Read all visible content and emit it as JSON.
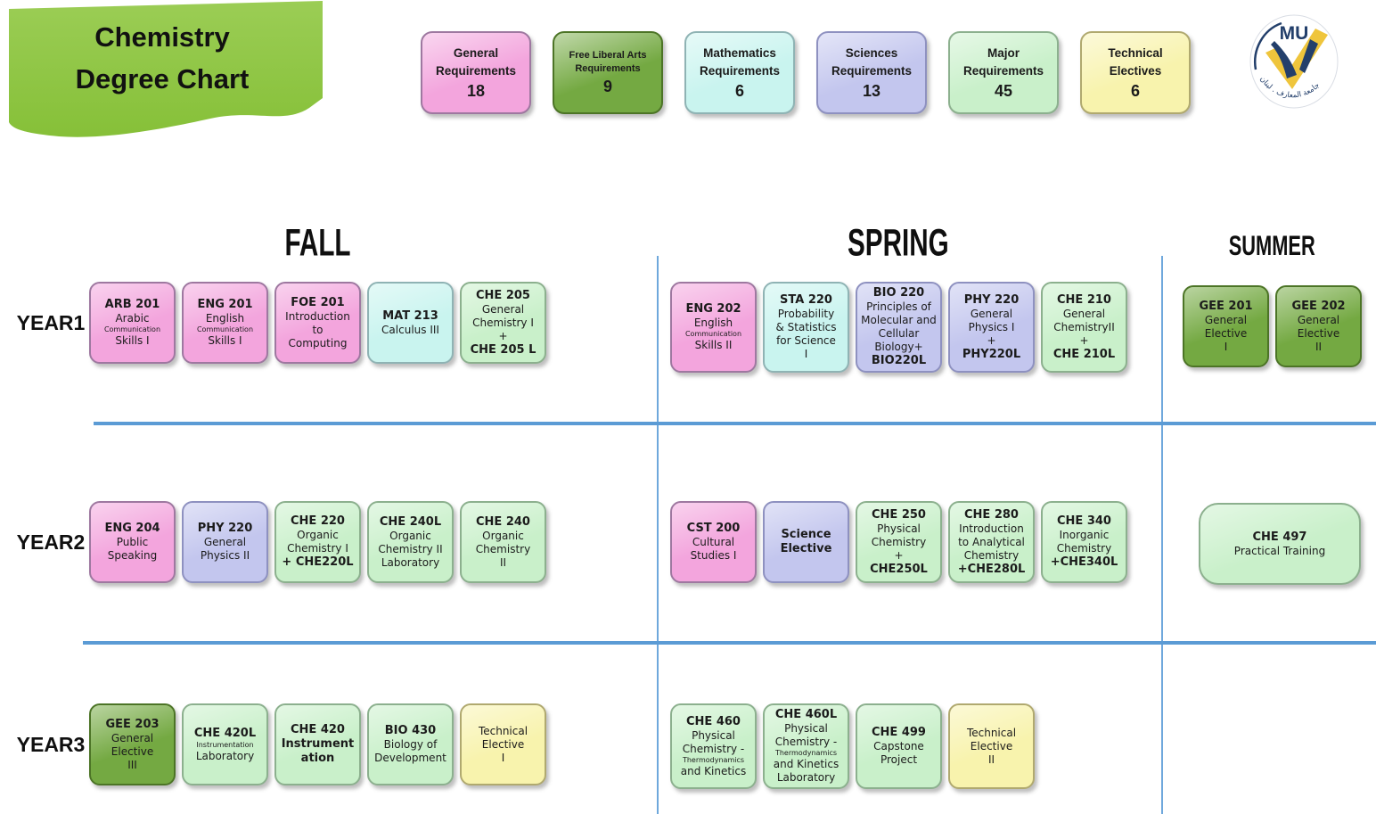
{
  "title": {
    "line1": "Chemistry",
    "line2": "Degree Chart"
  },
  "logo": {
    "text": "MU",
    "arabic": "جامعة المعارف . لبنان"
  },
  "columns": [
    "FALL",
    "SPRING",
    "SUMMER"
  ],
  "legend": [
    {
      "title": "General",
      "title2": "Requirements",
      "value": "18",
      "type": "pink",
      "small": false
    },
    {
      "title": "Free Liberal Arts",
      "title2": "Requirements",
      "value": "9",
      "type": "darkgreen",
      "small": true
    },
    {
      "title": "Mathematics",
      "title2": "Requirements",
      "value": "6",
      "type": "cyan",
      "small": false
    },
    {
      "title": "Sciences",
      "title2": "Requirements",
      "value": "13",
      "type": "lavender",
      "small": false
    },
    {
      "title": "Major",
      "title2": "Requirements",
      "value": "45",
      "type": "major",
      "small": false
    },
    {
      "title": "Technical",
      "title2": "Electives",
      "value": "6",
      "type": "yellow",
      "small": false
    }
  ],
  "years": [
    {
      "label": "YEAR1",
      "fall": [
        {
          "id": "arb-201",
          "type": "pink",
          "lines": [
            {
              "s": "b",
              "t": "ARB 201"
            },
            {
              "s": "n",
              "t": "Arabic"
            },
            {
              "s": "sm",
              "t": "Communication"
            },
            {
              "s": "n",
              "t": "Skills I"
            }
          ]
        },
        {
          "id": "eng-201",
          "type": "pink",
          "lines": [
            {
              "s": "b",
              "t": "ENG 201"
            },
            {
              "s": "n",
              "t": "English"
            },
            {
              "s": "sm",
              "t": "Communication"
            },
            {
              "s": "n",
              "t": "Skills I"
            }
          ]
        },
        {
          "id": "foe-201",
          "type": "pink",
          "lines": [
            {
              "s": "b",
              "t": "FOE 201"
            },
            {
              "s": "n",
              "t": "Introduction"
            },
            {
              "s": "n",
              "t": "to"
            },
            {
              "s": "n",
              "t": "Computing"
            }
          ]
        },
        {
          "id": "mat-213",
          "type": "cyan",
          "lines": [
            {
              "s": "b",
              "t": "MAT 213"
            },
            {
              "s": "n",
              "t": "Calculus III"
            }
          ]
        },
        {
          "id": "che-205",
          "type": "major",
          "lines": [
            {
              "s": "b",
              "t": "CHE 205"
            },
            {
              "s": "n",
              "t": "General"
            },
            {
              "s": "n",
              "t": "Chemistry I"
            },
            {
              "s": "n",
              "t": "+"
            },
            {
              "s": "b",
              "t": "CHE 205 L"
            }
          ]
        }
      ],
      "spring": [
        {
          "id": "eng-202",
          "type": "pink",
          "lines": [
            {
              "s": "b",
              "t": "ENG 202"
            },
            {
              "s": "n",
              "t": "English"
            },
            {
              "s": "sm",
              "t": "Communication"
            },
            {
              "s": "n",
              "t": "Skills II"
            }
          ]
        },
        {
          "id": "sta-220",
          "type": "cyan",
          "lines": [
            {
              "s": "b",
              "t": "STA 220"
            },
            {
              "s": "n",
              "t": "Probability"
            },
            {
              "s": "n",
              "t": "& Statistics"
            },
            {
              "s": "n",
              "t": "for Science"
            },
            {
              "s": "n",
              "t": "I"
            }
          ]
        },
        {
          "id": "bio-220",
          "type": "lavender",
          "lines": [
            {
              "s": "b",
              "t": "BIO 220"
            },
            {
              "s": "n",
              "t": "Principles of"
            },
            {
              "s": "n",
              "t": "Molecular and"
            },
            {
              "s": "n",
              "t": "Cellular"
            },
            {
              "s": "n",
              "t": "Biology+"
            },
            {
              "s": "b",
              "t": "BIO220L"
            }
          ]
        },
        {
          "id": "phy-220",
          "type": "lavender",
          "lines": [
            {
              "s": "b",
              "t": "PHY 220"
            },
            {
              "s": "n",
              "t": "General"
            },
            {
              "s": "n",
              "t": "Physics I"
            },
            {
              "s": "n",
              "t": "+"
            },
            {
              "s": "b",
              "t": "PHY220L"
            }
          ]
        },
        {
          "id": "che-210",
          "type": "major",
          "lines": [
            {
              "s": "b",
              "t": "CHE 210"
            },
            {
              "s": "n",
              "t": "General"
            },
            {
              "s": "n",
              "t": "ChemistryII"
            },
            {
              "s": "n",
              "t": "+"
            },
            {
              "s": "b",
              "t": "CHE 210L"
            }
          ]
        }
      ],
      "summer": [
        {
          "id": "gee-201",
          "type": "darkgreen",
          "lines": [
            {
              "s": "b",
              "t": "GEE 201"
            },
            {
              "s": "n",
              "t": "General"
            },
            {
              "s": "n",
              "t": "Elective"
            },
            {
              "s": "n",
              "t": "I"
            }
          ]
        },
        {
          "id": "gee-202",
          "type": "darkgreen",
          "lines": [
            {
              "s": "b",
              "t": "GEE 202"
            },
            {
              "s": "n",
              "t": "General"
            },
            {
              "s": "n",
              "t": "Elective"
            },
            {
              "s": "n",
              "t": "II"
            }
          ]
        }
      ]
    },
    {
      "label": "YEAR2",
      "fall": [
        {
          "id": "eng-204",
          "type": "pink",
          "lines": [
            {
              "s": "b",
              "t": "ENG 204"
            },
            {
              "s": "n",
              "t": "Public"
            },
            {
              "s": "n",
              "t": "Speaking"
            }
          ]
        },
        {
          "id": "phy-220-2",
          "type": "lavender",
          "lines": [
            {
              "s": "b",
              "t": "PHY 220"
            },
            {
              "s": "n",
              "t": "General"
            },
            {
              "s": "n",
              "t": "Physics II"
            }
          ]
        },
        {
          "id": "che-220",
          "type": "major",
          "lines": [
            {
              "s": "b",
              "t": "CHE 220"
            },
            {
              "s": "n",
              "t": "Organic"
            },
            {
              "s": "n",
              "t": "Chemistry I"
            },
            {
              "s": "b",
              "t": "+ CHE220L"
            }
          ]
        },
        {
          "id": "che-240l",
          "type": "major",
          "lines": [
            {
              "s": "b",
              "t": "CHE 240L"
            },
            {
              "s": "n",
              "t": "Organic"
            },
            {
              "s": "n",
              "t": "Chemistry II"
            },
            {
              "s": "n",
              "t": "Laboratory"
            }
          ]
        },
        {
          "id": "che-240",
          "type": "major",
          "lines": [
            {
              "s": "b",
              "t": "CHE 240"
            },
            {
              "s": "n",
              "t": "Organic"
            },
            {
              "s": "n",
              "t": "Chemistry"
            },
            {
              "s": "n",
              "t": "II"
            }
          ]
        }
      ],
      "spring": [
        {
          "id": "cst-200",
          "type": "pink",
          "lines": [
            {
              "s": "b",
              "t": "CST 200"
            },
            {
              "s": "n",
              "t": "Cultural"
            },
            {
              "s": "n",
              "t": "Studies I"
            }
          ]
        },
        {
          "id": "science-elective",
          "type": "lavender",
          "lines": [
            {
              "s": "b",
              "t": "Science"
            },
            {
              "s": "b",
              "t": "Elective"
            }
          ]
        },
        {
          "id": "che-250",
          "type": "major",
          "lines": [
            {
              "s": "b",
              "t": "CHE 250"
            },
            {
              "s": "n",
              "t": "Physical"
            },
            {
              "s": "n",
              "t": "Chemistry"
            },
            {
              "s": "n",
              "t": "+"
            },
            {
              "s": "b",
              "t": "CHE250L"
            }
          ]
        },
        {
          "id": "che-280",
          "type": "major",
          "lines": [
            {
              "s": "b",
              "t": "CHE 280"
            },
            {
              "s": "n",
              "t": "Introduction"
            },
            {
              "s": "n",
              "t": "to Analytical"
            },
            {
              "s": "n",
              "t": "Chemistry"
            },
            {
              "s": "b",
              "t": "+CHE280L"
            }
          ]
        },
        {
          "id": "che-340",
          "type": "major",
          "lines": [
            {
              "s": "b",
              "t": "CHE 340"
            },
            {
              "s": "n",
              "t": "Inorganic"
            },
            {
              "s": "n",
              "t": "Chemistry"
            },
            {
              "s": "b",
              "t": "+CHE340L"
            }
          ]
        }
      ],
      "summer": [
        {
          "id": "che-497",
          "type": "major",
          "wide": true,
          "lines": [
            {
              "s": "b",
              "t": "CHE 497"
            },
            {
              "s": "n",
              "t": "Practical Training"
            }
          ]
        }
      ]
    },
    {
      "label": "YEAR3",
      "fall": [
        {
          "id": "gee-203",
          "type": "darkgreen",
          "lines": [
            {
              "s": "b",
              "t": "GEE 203"
            },
            {
              "s": "n",
              "t": "General"
            },
            {
              "s": "n",
              "t": "Elective"
            },
            {
              "s": "n",
              "t": "III"
            }
          ]
        },
        {
          "id": "che-420l",
          "type": "major",
          "lines": [
            {
              "s": "b",
              "t": "CHE 420L"
            },
            {
              "s": "sm",
              "t": "Instrumentation"
            },
            {
              "s": "n",
              "t": "Laboratory"
            }
          ]
        },
        {
          "id": "che-420",
          "type": "major",
          "lines": [
            {
              "s": "b",
              "t": "CHE 420"
            },
            {
              "s": "b",
              "t": "Instrument"
            },
            {
              "s": "b",
              "t": "ation"
            }
          ]
        },
        {
          "id": "bio-430",
          "type": "major",
          "lines": [
            {
              "s": "b",
              "t": "BIO 430"
            },
            {
              "s": "n",
              "t": "Biology of"
            },
            {
              "s": "n",
              "t": "Development"
            }
          ]
        },
        {
          "id": "technical-elective-1",
          "type": "yellow",
          "lines": [
            {
              "s": "n",
              "t": "Technical"
            },
            {
              "s": "n",
              "t": "Elective"
            },
            {
              "s": "n",
              "t": "I"
            }
          ]
        }
      ],
      "spring": [
        {
          "id": "che-460",
          "type": "major",
          "lines": [
            {
              "s": "b",
              "t": "CHE 460"
            },
            {
              "s": "n",
              "t": "Physical"
            },
            {
              "s": "n",
              "t": "Chemistry -"
            },
            {
              "s": "sm",
              "t": "Thermodynamics"
            },
            {
              "s": "n",
              "t": "and Kinetics"
            }
          ]
        },
        {
          "id": "che-460l",
          "type": "major",
          "lines": [
            {
              "s": "b",
              "t": "CHE 460L"
            },
            {
              "s": "n",
              "t": "Physical"
            },
            {
              "s": "n",
              "t": "Chemistry -"
            },
            {
              "s": "sm",
              "t": "Thermodynamics"
            },
            {
              "s": "n",
              "t": "and Kinetics"
            },
            {
              "s": "n",
              "t": "Laboratory"
            }
          ]
        },
        {
          "id": "che-499",
          "type": "major",
          "lines": [
            {
              "s": "b",
              "t": "CHE 499"
            },
            {
              "s": "n",
              "t": "Capstone"
            },
            {
              "s": "n",
              "t": "Project"
            }
          ]
        },
        {
          "id": "technical-elective-2",
          "type": "yellow",
          "lines": [
            {
              "s": "n",
              "t": "Technical"
            },
            {
              "s": "n",
              "t": "Elective"
            },
            {
              "s": "n",
              "t": "II"
            }
          ]
        }
      ],
      "summer": []
    }
  ],
  "colors": {
    "accent_line": "#5B9BD5",
    "banner_green": "#8FC840",
    "pink": "#F3A5DD",
    "cyan": "#C9F4EF",
    "lavender": "#C3C6EE",
    "major_green": "#C9F0CA",
    "dark_green": "#74A942",
    "yellow": "#F8F3AD",
    "logo_navy": "#233F6B",
    "logo_gold": "#EFC53C"
  }
}
